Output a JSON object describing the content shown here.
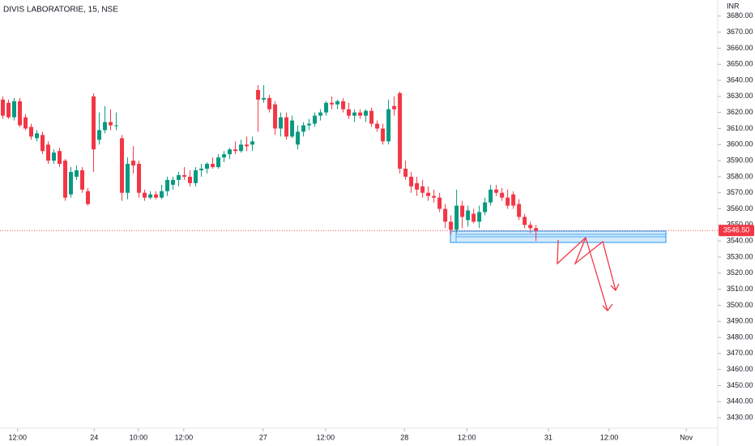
{
  "chart_data": {
    "type": "candlestick",
    "title": "DIVIS LABORATORIE, 15, NSE",
    "currency": "INR",
    "up_color": "#089981",
    "down_color": "#f23645",
    "x": [
      0,
      1,
      2,
      3,
      4,
      5,
      6,
      7,
      8,
      9,
      10,
      11,
      12,
      13,
      14,
      15,
      16,
      17,
      18,
      19,
      20,
      21,
      22,
      23,
      24,
      25,
      26,
      27,
      28,
      29,
      30,
      31,
      32,
      33,
      34,
      35,
      36,
      37,
      38,
      39,
      40,
      41,
      42,
      43,
      44,
      45,
      46,
      47,
      48,
      49,
      50,
      51,
      52,
      53,
      54,
      55,
      56,
      57,
      58,
      59,
      60,
      61,
      62,
      63,
      64,
      65,
      66,
      67,
      68,
      69,
      70,
      71,
      72,
      73,
      74,
      75,
      76,
      77,
      78,
      79,
      80,
      81,
      82,
      83,
      84,
      85,
      86,
      87,
      88,
      89,
      90,
      91,
      92,
      93,
      94
    ],
    "open": [
      3628,
      3626,
      3617,
      3627,
      3617,
      3611,
      3604,
      3606,
      3600,
      3590,
      3596,
      3590,
      3569,
      3580,
      3584,
      3571,
      3630,
      3603,
      3609,
      3614,
      3612,
      3604,
      3570,
      3590,
      3588,
      3570,
      3567,
      3569,
      3567,
      3571,
      3575,
      3578,
      3581,
      3580,
      3576,
      3584,
      3585,
      3588,
      3586,
      3592,
      3594,
      3597,
      3596,
      3600,
      3600,
      3634,
      3628,
      3629,
      3625,
      3610,
      3617,
      3605,
      3600,
      3608,
      3612,
      3613,
      3618,
      3620,
      3626,
      3625,
      3627,
      3622,
      3618,
      3620,
      3618,
      3621,
      3613,
      3610,
      3602,
      3624,
      3632,
      3585,
      3580,
      3576,
      3574,
      3570,
      3568,
      3567,
      3560,
      3552,
      3547,
      3562,
      3553,
      3557,
      3552,
      3558,
      3564,
      3572,
      3570,
      3567,
      3569,
      3563,
      3555,
      3550,
      3548
    ],
    "high": [
      3630,
      3628,
      3629,
      3629,
      3619,
      3613,
      3609,
      3608,
      3602,
      3597,
      3598,
      3591,
      3586,
      3587,
      3586,
      3573,
      3632,
      3620,
      3624,
      3622,
      3620,
      3606,
      3592,
      3599,
      3590,
      3572,
      3571,
      3571,
      3575,
      3580,
      3580,
      3583,
      3586,
      3584,
      3586,
      3588,
      3589,
      3592,
      3594,
      3596,
      3598,
      3602,
      3603,
      3605,
      3605,
      3637,
      3637,
      3631,
      3627,
      3620,
      3620,
      3618,
      3612,
      3614,
      3616,
      3620,
      3622,
      3627,
      3630,
      3628,
      3629,
      3626,
      3622,
      3622,
      3622,
      3623,
      3615,
      3613,
      3628,
      3630,
      3633,
      3590,
      3583,
      3580,
      3578,
      3574,
      3572,
      3570,
      3563,
      3556,
      3572,
      3565,
      3562,
      3560,
      3562,
      3567,
      3575,
      3575,
      3573,
      3572,
      3571,
      3566,
      3557,
      3552,
      3550
    ],
    "low": [
      3616,
      3616,
      3615,
      3611,
      3609,
      3603,
      3602,
      3594,
      3588,
      3588,
      3586,
      3565,
      3567,
      3578,
      3570,
      3562,
      3583,
      3600,
      3607,
      3609,
      3609,
      3565,
      3566,
      3582,
      3567,
      3565,
      3566,
      3566,
      3566,
      3568,
      3572,
      3574,
      3578,
      3574,
      3574,
      3580,
      3582,
      3585,
      3585,
      3589,
      3591,
      3594,
      3595,
      3596,
      3596,
      3608,
      3626,
      3620,
      3606,
      3605,
      3603,
      3604,
      3597,
      3605,
      3609,
      3611,
      3615,
      3618,
      3622,
      3622,
      3620,
      3616,
      3614,
      3616,
      3614,
      3611,
      3608,
      3600,
      3600,
      3618,
      3582,
      3578,
      3570,
      3568,
      3567,
      3565,
      3564,
      3558,
      3548,
      3544,
      3545,
      3548,
      3549,
      3551,
      3548,
      3556,
      3562,
      3568,
      3565,
      3560,
      3560,
      3553,
      3548,
      3545,
      3540
    ],
    "close": [
      3618,
      3617,
      3627,
      3612,
      3610,
      3605,
      3607,
      3596,
      3590,
      3595,
      3588,
      3567,
      3583,
      3584,
      3572,
      3563,
      3597,
      3609,
      3614,
      3612,
      3612,
      3570,
      3588,
      3587,
      3570,
      3567,
      3569,
      3567,
      3571,
      3578,
      3578,
      3581,
      3580,
      3576,
      3584,
      3585,
      3588,
      3586,
      3592,
      3594,
      3597,
      3596,
      3600,
      3599,
      3602,
      3628,
      3629,
      3622,
      3610,
      3617,
      3605,
      3615,
      3608,
      3612,
      3613,
      3618,
      3620,
      3626,
      3625,
      3627,
      3622,
      3618,
      3620,
      3618,
      3621,
      3613,
      3610,
      3602,
      3622,
      3622,
      3585,
      3580,
      3574,
      3572,
      3570,
      3568,
      3567,
      3560,
      3552,
      3547,
      3562,
      3555,
      3559,
      3552,
      3558,
      3564,
      3572,
      3570,
      3567,
      3562,
      3562,
      3555,
      3550,
      3548,
      3546.5
    ],
    "last_price": {
      "value": 3546.5,
      "label": "3546.50"
    },
    "xlim": [
      -0.5,
      125.9
    ],
    "ylim": [
      3424,
      3690
    ],
    "xticks": [
      {
        "value": 2.6,
        "label": "12:00"
      },
      {
        "value": 16.1,
        "label": "24"
      },
      {
        "value": 23.9,
        "label": "10:00"
      },
      {
        "value": 31.9,
        "label": "12:00"
      },
      {
        "value": 45.9,
        "label": "27"
      },
      {
        "value": 56.9,
        "label": "12:00"
      },
      {
        "value": 70.8,
        "label": "28"
      },
      {
        "value": 81.8,
        "label": "12:00"
      },
      {
        "value": 96.2,
        "label": "31"
      },
      {
        "value": 106.9,
        "label": "12:00"
      },
      {
        "value": 120.5,
        "label": "Nov"
      }
    ],
    "yticks": [
      {
        "value": 3680,
        "label": "3680.00"
      },
      {
        "value": 3670,
        "label": "3670.00"
      },
      {
        "value": 3660,
        "label": "3660.00"
      },
      {
        "value": 3650,
        "label": "3650.00"
      },
      {
        "value": 3640,
        "label": "3640.00"
      },
      {
        "value": 3630,
        "label": "3630.00"
      },
      {
        "value": 3620,
        "label": "3620.00"
      },
      {
        "value": 3610,
        "label": "3610.00"
      },
      {
        "value": 3600,
        "label": "3600.00"
      },
      {
        "value": 3590,
        "label": "3590.00"
      },
      {
        "value": 3580,
        "label": "3580.00"
      },
      {
        "value": 3570,
        "label": "3570.00"
      },
      {
        "value": 3560,
        "label": "3560.00"
      },
      {
        "value": 3550,
        "label": "3550.00"
      },
      {
        "value": 3540,
        "label": "3540.00"
      },
      {
        "value": 3530,
        "label": "3530.00"
      },
      {
        "value": 3520,
        "label": "3520.00"
      },
      {
        "value": 3510,
        "label": "3510.00"
      },
      {
        "value": 3500,
        "label": "3500.00"
      },
      {
        "value": 3490,
        "label": "3490.00"
      },
      {
        "value": 3480,
        "label": "3480.00"
      },
      {
        "value": 3470,
        "label": "3470.00"
      },
      {
        "value": 3460,
        "label": "3460.00"
      },
      {
        "value": 3450,
        "label": "3450.00"
      },
      {
        "value": 3440,
        "label": "3440.00"
      },
      {
        "value": 3430,
        "label": "3430.00"
      }
    ]
  }
}
